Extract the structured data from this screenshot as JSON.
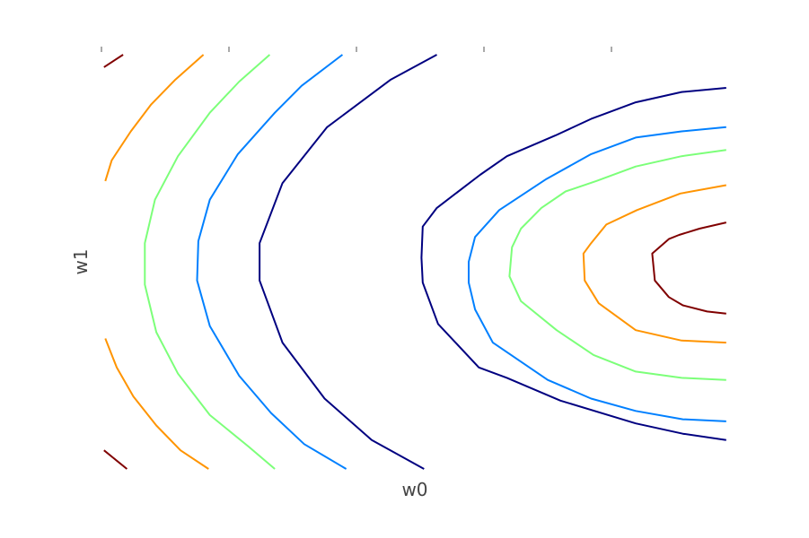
{
  "chart_data": {
    "type": "contour",
    "title": "",
    "xlabel": "w0",
    "ylabel": "w1",
    "xlim": [
      0,
      5
    ],
    "ylim": [
      -1,
      1
    ],
    "grid": false,
    "legend": "none",
    "xticks": [
      0,
      1,
      2,
      3,
      4
    ],
    "xtick_labels": [],
    "yticks": [],
    "level_colors": [
      "#000080",
      "#0080ff",
      "#7cff79",
      "#ff9400",
      "#800000"
    ],
    "contours": [
      {
        "level": 1,
        "color": "#000080",
        "lines": [
          [
            [
              2.63,
              1.0
            ],
            [
              2.27,
              0.88
            ],
            [
              1.77,
              0.65
            ],
            [
              1.42,
              0.38
            ],
            [
              1.24,
              0.09
            ],
            [
              1.24,
              -0.09
            ],
            [
              1.42,
              -0.39
            ],
            [
              1.75,
              -0.66
            ],
            [
              2.12,
              -0.86
            ],
            [
              2.53,
              -1.0
            ]
          ],
          [
            [
              4.9,
              0.84
            ],
            [
              4.55,
              0.82
            ],
            [
              4.19,
              0.77
            ],
            [
              3.84,
              0.69
            ],
            [
              3.56,
              0.61
            ],
            [
              3.18,
              0.51
            ],
            [
              2.97,
              0.42
            ],
            [
              2.63,
              0.26
            ],
            [
              2.52,
              0.17
            ],
            [
              2.51,
              0.02
            ],
            [
              2.52,
              -0.1
            ],
            [
              2.64,
              -0.3
            ],
            [
              2.96,
              -0.51
            ],
            [
              3.18,
              -0.56
            ],
            [
              3.6,
              -0.67
            ],
            [
              4.19,
              -0.78
            ],
            [
              4.56,
              -0.83
            ],
            [
              4.9,
              -0.86
            ]
          ]
        ]
      },
      {
        "level": 2,
        "color": "#0080ff",
        "lines": [
          [
            [
              1.89,
              1.0
            ],
            [
              1.57,
              0.85
            ],
            [
              1.36,
              0.72
            ],
            [
              1.07,
              0.52
            ],
            [
              0.85,
              0.3
            ],
            [
              0.76,
              0.1
            ],
            [
              0.75,
              -0.09
            ],
            [
              0.85,
              -0.31
            ],
            [
              1.08,
              -0.55
            ],
            [
              1.33,
              -0.73
            ],
            [
              1.59,
              -0.88
            ],
            [
              1.92,
              -1.0
            ]
          ],
          [
            [
              4.9,
              0.65
            ],
            [
              4.55,
              0.63
            ],
            [
              4.19,
              0.6
            ],
            [
              3.84,
              0.52
            ],
            [
              3.49,
              0.4
            ],
            [
              3.12,
              0.25
            ],
            [
              2.93,
              0.12
            ],
            [
              2.88,
              0.0
            ],
            [
              2.88,
              -0.1
            ],
            [
              2.93,
              -0.23
            ],
            [
              3.07,
              -0.39
            ],
            [
              3.5,
              -0.57
            ],
            [
              3.84,
              -0.66
            ],
            [
              4.19,
              -0.72
            ],
            [
              4.56,
              -0.76
            ],
            [
              4.9,
              -0.77
            ]
          ]
        ]
      },
      {
        "level": 3,
        "color": "#7cff79",
        "lines": [
          [
            [
              1.32,
              1.0
            ],
            [
              1.08,
              0.87
            ],
            [
              0.85,
              0.72
            ],
            [
              0.6,
              0.51
            ],
            [
              0.42,
              0.3
            ],
            [
              0.34,
              0.09
            ],
            [
              0.34,
              -0.11
            ],
            [
              0.43,
              -0.34
            ],
            [
              0.6,
              -0.54
            ],
            [
              0.85,
              -0.74
            ],
            [
              1.15,
              -0.89
            ],
            [
              1.36,
              -1.0
            ]
          ],
          [
            [
              4.9,
              0.54
            ],
            [
              4.55,
              0.51
            ],
            [
              4.19,
              0.46
            ],
            [
              3.88,
              0.39
            ],
            [
              3.64,
              0.34
            ],
            [
              3.45,
              0.26
            ],
            [
              3.29,
              0.16
            ],
            [
              3.22,
              0.07
            ],
            [
              3.2,
              -0.07
            ],
            [
              3.29,
              -0.19
            ],
            [
              3.57,
              -0.33
            ],
            [
              3.86,
              -0.45
            ],
            [
              4.19,
              -0.53
            ],
            [
              4.55,
              -0.56
            ],
            [
              4.9,
              -0.57
            ]
          ]
        ]
      },
      {
        "level": 4,
        "color": "#ff9400",
        "lines": [
          [
            [
              0.8,
              1.0
            ],
            [
              0.58,
              0.88
            ],
            [
              0.39,
              0.76
            ],
            [
              0.23,
              0.63
            ],
            [
              0.08,
              0.49
            ],
            [
              0.03,
              0.39
            ]
          ],
          [
            [
              0.03,
              -0.37
            ],
            [
              0.12,
              -0.51
            ],
            [
              0.25,
              -0.65
            ],
            [
              0.43,
              -0.79
            ],
            [
              0.62,
              -0.91
            ],
            [
              0.84,
              -1.0
            ]
          ],
          [
            [
              4.9,
              0.37
            ],
            [
              4.54,
              0.33
            ],
            [
              4.2,
              0.25
            ],
            [
              3.96,
              0.18
            ],
            [
              3.84,
              0.09
            ],
            [
              3.78,
              0.04
            ],
            [
              3.79,
              -0.09
            ],
            [
              3.9,
              -0.2
            ],
            [
              4.19,
              -0.33
            ],
            [
              4.55,
              -0.38
            ],
            [
              4.9,
              -0.39
            ]
          ]
        ]
      },
      {
        "level": 5,
        "color": "#800000",
        "lines": [
          [
            [
              0.17,
              1.0
            ],
            [
              0.02,
              0.94
            ]
          ],
          [
            [
              0.02,
              -0.91
            ],
            [
              0.2,
              -1.0
            ]
          ],
          [
            [
              4.9,
              0.19
            ],
            [
              4.69,
              0.16
            ],
            [
              4.53,
              0.13
            ],
            [
              4.45,
              0.11
            ],
            [
              4.32,
              0.04
            ],
            [
              4.34,
              -0.09
            ],
            [
              4.45,
              -0.17
            ],
            [
              4.56,
              -0.21
            ],
            [
              4.75,
              -0.24
            ],
            [
              4.9,
              -0.25
            ]
          ]
        ]
      }
    ]
  }
}
